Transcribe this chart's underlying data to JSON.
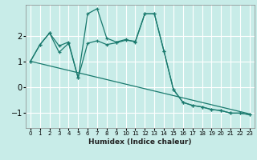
{
  "xlabel": "Humidex (Indice chaleur)",
  "bg_color": "#c8ece8",
  "line_color": "#1a7a6e",
  "grid_color": "#ffffff",
  "ylim": [
    -1.6,
    3.2
  ],
  "xlim": [
    -0.5,
    23.5
  ],
  "xticks": [
    0,
    1,
    2,
    3,
    4,
    5,
    6,
    7,
    8,
    9,
    10,
    11,
    12,
    13,
    14,
    15,
    16,
    17,
    18,
    19,
    20,
    21,
    22,
    23
  ],
  "yticks": [
    -1,
    0,
    1,
    2
  ],
  "series1_x": [
    0,
    23
  ],
  "series1_y": [
    1.0,
    -1.05
  ],
  "series2_x": [
    0,
    1,
    2,
    3,
    4,
    5,
    6,
    7,
    8,
    9,
    10,
    11,
    12,
    13,
    14,
    15,
    16,
    17,
    18,
    19,
    20,
    21,
    22,
    23
  ],
  "series2_y": [
    1.0,
    1.65,
    2.1,
    1.35,
    1.7,
    0.35,
    2.85,
    3.05,
    1.9,
    1.75,
    1.85,
    1.75,
    2.85,
    2.85,
    1.4,
    -0.1,
    -0.6,
    -0.72,
    -0.78,
    -0.88,
    -0.92,
    -1.02,
    -1.02,
    -1.08
  ],
  "series3_x": [
    0,
    1,
    2,
    3,
    4,
    5,
    6,
    7,
    8,
    9,
    10,
    11,
    12,
    13,
    14,
    15,
    16,
    17,
    18,
    19,
    20,
    21,
    22,
    23
  ],
  "series3_y": [
    1.0,
    1.65,
    2.1,
    1.6,
    1.75,
    0.35,
    1.7,
    1.8,
    1.65,
    1.72,
    1.82,
    1.78,
    2.85,
    2.85,
    1.4,
    -0.1,
    -0.6,
    -0.72,
    -0.78,
    -0.88,
    -0.92,
    -1.02,
    -1.02,
    -1.08
  ]
}
